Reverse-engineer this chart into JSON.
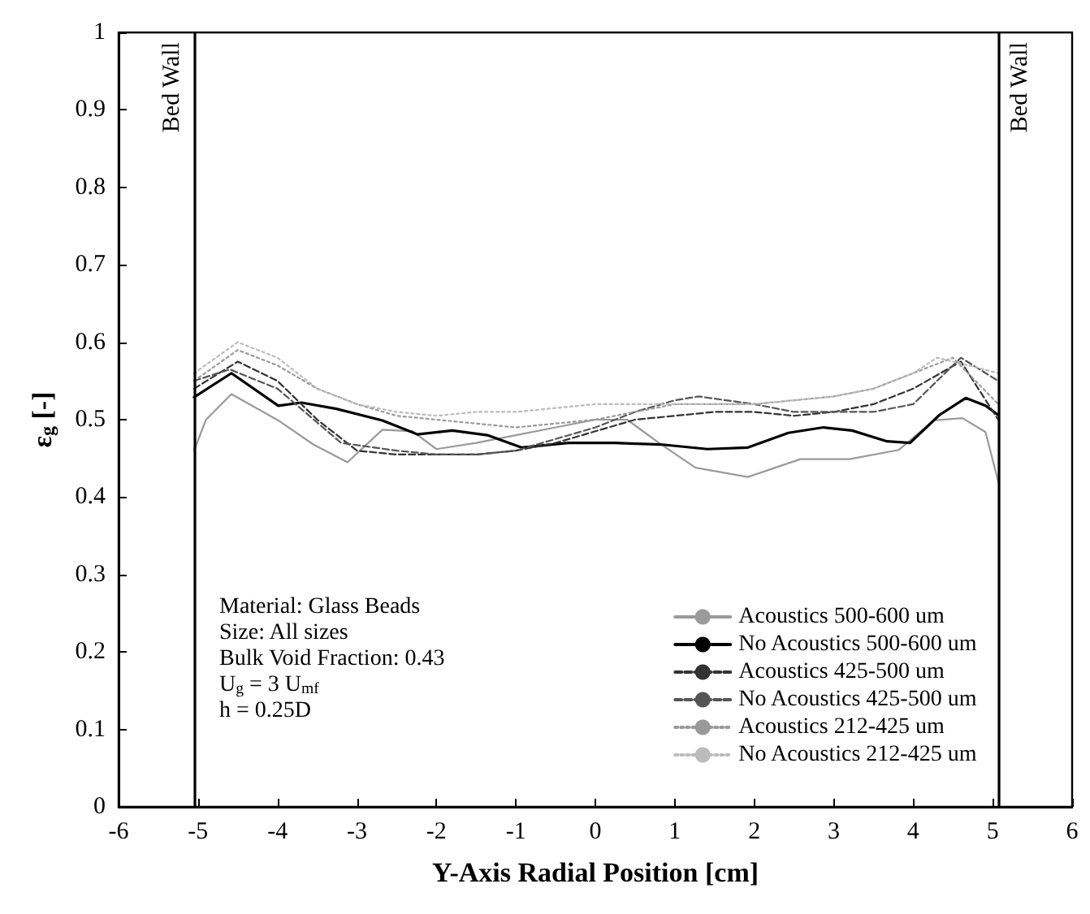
{
  "chart_data": {
    "type": "line",
    "xlabel": "Y-Axis Radial Position [cm]",
    "ylabel": "ε$_{g}$ [-]",
    "xlim": [
      -6,
      6
    ],
    "xticks": [
      -6,
      -5,
      -4,
      -3,
      -2,
      -1,
      0,
      1,
      2,
      3,
      4,
      5,
      6
    ],
    "ylim": [
      0,
      1
    ],
    "yticks": [
      0,
      0.1,
      0.2,
      0.3,
      0.4,
      0.5,
      0.6,
      0.7,
      0.8,
      0.9,
      1
    ],
    "grid": false,
    "legend": "bottom right",
    "marker": "none",
    "annotations": [
      "Material: Glass Beads",
      "Size: All sizes",
      "Bulk Void Fraction: 0.43",
      "U$_{g}$ = 3 U$_{mf}$",
      "h = 0.25D"
    ],
    "ref_lines": [
      {
        "axis": "x",
        "value": -5.05,
        "label": "Bed Wall",
        "color": "#000000"
      },
      {
        "axis": "x",
        "value": 5.07,
        "label": "Bed Wall",
        "color": "#000000"
      }
    ],
    "series": [
      {
        "name": "Acoustics 500-600 um",
        "color": "#9a9a9a",
        "line_style": "solid",
        "x": [
          -5.05,
          -4.9,
          -4.58,
          -3.99,
          -3.55,
          -3.12,
          -2.68,
          -2.3,
          -2,
          -1.5,
          -1,
          -0.5,
          0,
          0.4,
          0.8,
          1.26,
          1.92,
          2.58,
          3.2,
          3.82,
          4.26,
          4.62,
          4.91,
          5.07
        ],
        "values": [
          0.46,
          0.5,
          0.533,
          0.499,
          0.468,
          0.445,
          0.487,
          0.485,
          0.462,
          0.47,
          0.48,
          0.49,
          0.5,
          0.5,
          0.47,
          0.438,
          0.426,
          0.449,
          0.449,
          0.461,
          0.499,
          0.502,
          0.484,
          0.42
        ]
      },
      {
        "name": "No Acoustics 500-600 um",
        "color": "#000000",
        "line_style": "solid",
        "x": [
          -5.05,
          -4.58,
          -3.99,
          -3.7,
          -3.26,
          -2.68,
          -2.24,
          -1.8,
          -1.36,
          -0.93,
          -0.34,
          0.24,
          0.82,
          1.41,
          1.92,
          2.43,
          2.87,
          3.23,
          3.67,
          3.96,
          4.33,
          4.66,
          4.91,
          5.07
        ],
        "values": [
          0.529,
          0.56,
          0.518,
          0.522,
          0.514,
          0.499,
          0.481,
          0.486,
          0.48,
          0.464,
          0.47,
          0.47,
          0.468,
          0.462,
          0.464,
          0.483,
          0.49,
          0.486,
          0.472,
          0.47,
          0.506,
          0.528,
          0.518,
          0.506
        ]
      },
      {
        "name": "Acoustics 425-500 um",
        "color": "#333333",
        "line_style": "dashed",
        "x": [
          -5.05,
          -4.5,
          -4,
          -3.5,
          -3,
          -2.5,
          -2,
          -1.5,
          -1,
          -0.5,
          0,
          0.5,
          1,
          1.5,
          2,
          2.5,
          3,
          3.5,
          4,
          4.6,
          5.07
        ],
        "values": [
          0.54,
          0.575,
          0.55,
          0.5,
          0.46,
          0.455,
          0.455,
          0.455,
          0.46,
          0.47,
          0.485,
          0.5,
          0.505,
          0.51,
          0.51,
          0.505,
          0.51,
          0.52,
          0.54,
          0.575,
          0.5
        ]
      },
      {
        "name": "No Acoustics 425-500 um",
        "color": "#555555",
        "line_style": "dashed",
        "x": [
          -5.05,
          -4.6,
          -4,
          -3.2,
          -2.5,
          -2,
          -1.5,
          -1,
          -0.5,
          0,
          0.5,
          1,
          1.3,
          2,
          2.5,
          3,
          3.5,
          4,
          4.6,
          5.07
        ],
        "values": [
          0.55,
          0.565,
          0.54,
          0.47,
          0.46,
          0.455,
          0.455,
          0.46,
          0.475,
          0.49,
          0.51,
          0.525,
          0.53,
          0.52,
          0.51,
          0.51,
          0.51,
          0.52,
          0.58,
          0.55
        ]
      },
      {
        "name": "Acoustics 212-425 um",
        "color": "#999999",
        "line_style": "dotted",
        "x": [
          -5.05,
          -4.5,
          -4,
          -3.5,
          -3,
          -2.5,
          -2,
          -1.5,
          -1,
          -0.5,
          0,
          0.5,
          1,
          1.5,
          2,
          2.5,
          3,
          3.5,
          4,
          4.5,
          5.07
        ],
        "values": [
          0.55,
          0.59,
          0.57,
          0.54,
          0.52,
          0.505,
          0.5,
          0.495,
          0.49,
          0.495,
          0.5,
          0.51,
          0.52,
          0.52,
          0.52,
          0.525,
          0.53,
          0.54,
          0.56,
          0.58,
          0.52
        ]
      },
      {
        "name": "No Acoustics 212-425 um",
        "color": "#bbbbbb",
        "line_style": "dotted",
        "x": [
          -5.05,
          -4.5,
          -4,
          -3.5,
          -3,
          -2.5,
          -2,
          -1.5,
          -1,
          -0.5,
          0,
          0.5,
          1,
          1.5,
          2,
          2.5,
          3,
          3.5,
          4,
          4.3,
          4.7,
          5.07
        ],
        "values": [
          0.56,
          0.6,
          0.58,
          0.54,
          0.52,
          0.51,
          0.505,
          0.51,
          0.51,
          0.515,
          0.52,
          0.52,
          0.52,
          0.52,
          0.52,
          0.525,
          0.53,
          0.54,
          0.56,
          0.58,
          0.57,
          0.56
        ]
      }
    ]
  }
}
